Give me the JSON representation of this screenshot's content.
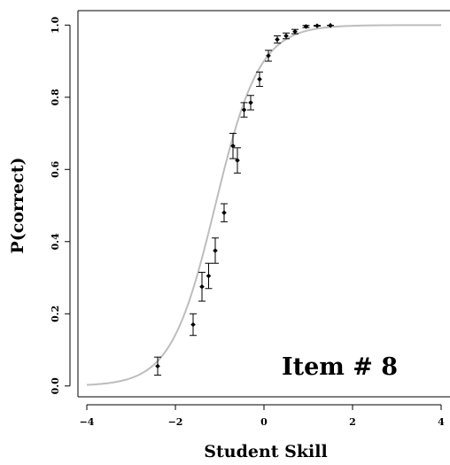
{
  "chart_data": {
    "type": "scatter",
    "title": "",
    "xlabel": "Student Skill",
    "ylabel": "P(correct)",
    "annotation": "Item #  8",
    "xlim": [
      -4.2,
      4.2
    ],
    "ylim": [
      -0.03,
      1.04
    ],
    "xticks": [
      -4,
      -2,
      0,
      2,
      4
    ],
    "yticks": [
      0.0,
      0.2,
      0.4,
      0.6,
      0.8,
      1.0
    ],
    "xtick_labels": [
      "−4",
      "−2",
      "0",
      "2",
      "4"
    ],
    "ytick_labels": [
      "0.0",
      "0.2",
      "0.4",
      "0.6",
      "0.8",
      "1.0"
    ],
    "grid": false,
    "curve": {
      "type": "logistic",
      "a": 2.0,
      "b": -1.1,
      "color": "#bdbdbd"
    },
    "points": [
      {
        "x": -2.4,
        "y": 0.055,
        "lo": 0.03,
        "hi": 0.08
      },
      {
        "x": -1.6,
        "y": 0.17,
        "lo": 0.14,
        "hi": 0.2
      },
      {
        "x": -1.4,
        "y": 0.275,
        "lo": 0.235,
        "hi": 0.315
      },
      {
        "x": -1.25,
        "y": 0.305,
        "lo": 0.27,
        "hi": 0.34
      },
      {
        "x": -1.1,
        "y": 0.375,
        "lo": 0.34,
        "hi": 0.41
      },
      {
        "x": -0.9,
        "y": 0.48,
        "lo": 0.455,
        "hi": 0.505
      },
      {
        "x": -0.7,
        "y": 0.665,
        "lo": 0.63,
        "hi": 0.7
      },
      {
        "x": -0.6,
        "y": 0.625,
        "lo": 0.59,
        "hi": 0.66
      },
      {
        "x": -0.45,
        "y": 0.765,
        "lo": 0.745,
        "hi": 0.785
      },
      {
        "x": -0.3,
        "y": 0.785,
        "lo": 0.765,
        "hi": 0.805
      },
      {
        "x": -0.1,
        "y": 0.85,
        "lo": 0.83,
        "hi": 0.87
      },
      {
        "x": 0.1,
        "y": 0.915,
        "lo": 0.9,
        "hi": 0.93
      },
      {
        "x": 0.3,
        "y": 0.96,
        "lo": 0.95,
        "hi": 0.97
      },
      {
        "x": 0.5,
        "y": 0.97,
        "lo": 0.962,
        "hi": 0.978
      },
      {
        "x": 0.7,
        "y": 0.982,
        "lo": 0.976,
        "hi": 0.988
      },
      {
        "x": 0.95,
        "y": 0.996,
        "lo": 0.993,
        "hi": 0.999
      },
      {
        "x": 1.2,
        "y": 0.998,
        "lo": 0.997,
        "hi": 0.999
      },
      {
        "x": 1.5,
        "y": 0.999,
        "lo": 0.999,
        "hi": 0.999
      }
    ]
  }
}
